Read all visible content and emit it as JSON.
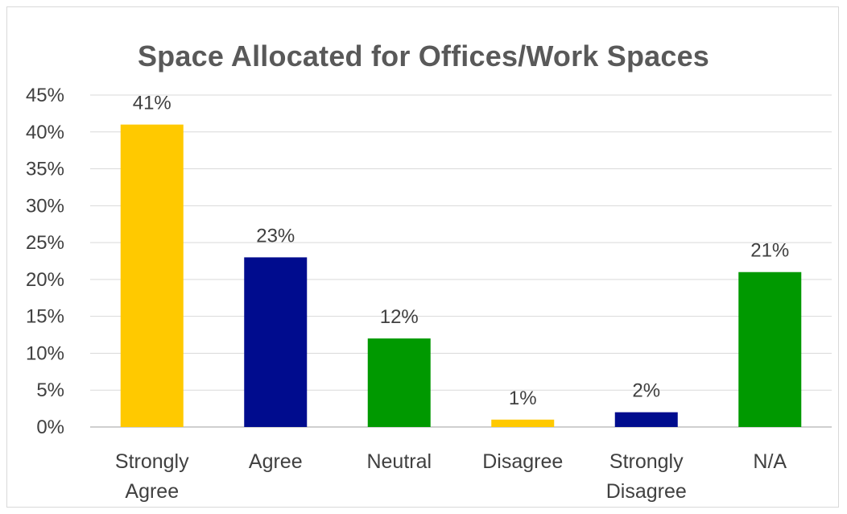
{
  "chart_data": {
    "type": "bar",
    "title": "Space Allocated for Offices/Work Spaces",
    "categories": [
      [
        "Strongly",
        "Agree"
      ],
      [
        "Agree"
      ],
      [
        "Neutral"
      ],
      [
        "Disagree"
      ],
      [
        "Strongly",
        "Disagree"
      ],
      [
        "N/A"
      ]
    ],
    "values": [
      41,
      23,
      12,
      1,
      2,
      21
    ],
    "data_labels": [
      "41%",
      "23%",
      "12%",
      "1%",
      "2%",
      "21%"
    ],
    "bar_colors": [
      "#FFC900",
      "#000C8E",
      "#009900",
      "#FFC900",
      "#000C8E",
      "#009900"
    ],
    "ylim": [
      0,
      45
    ],
    "yticks": [
      0,
      5,
      10,
      15,
      20,
      25,
      30,
      35,
      40,
      45
    ],
    "ytick_labels": [
      "0%",
      "5%",
      "10%",
      "15%",
      "20%",
      "25%",
      "30%",
      "35%",
      "40%",
      "45%"
    ],
    "grid": true,
    "legend": "none",
    "xlabel": "",
    "ylabel": ""
  }
}
